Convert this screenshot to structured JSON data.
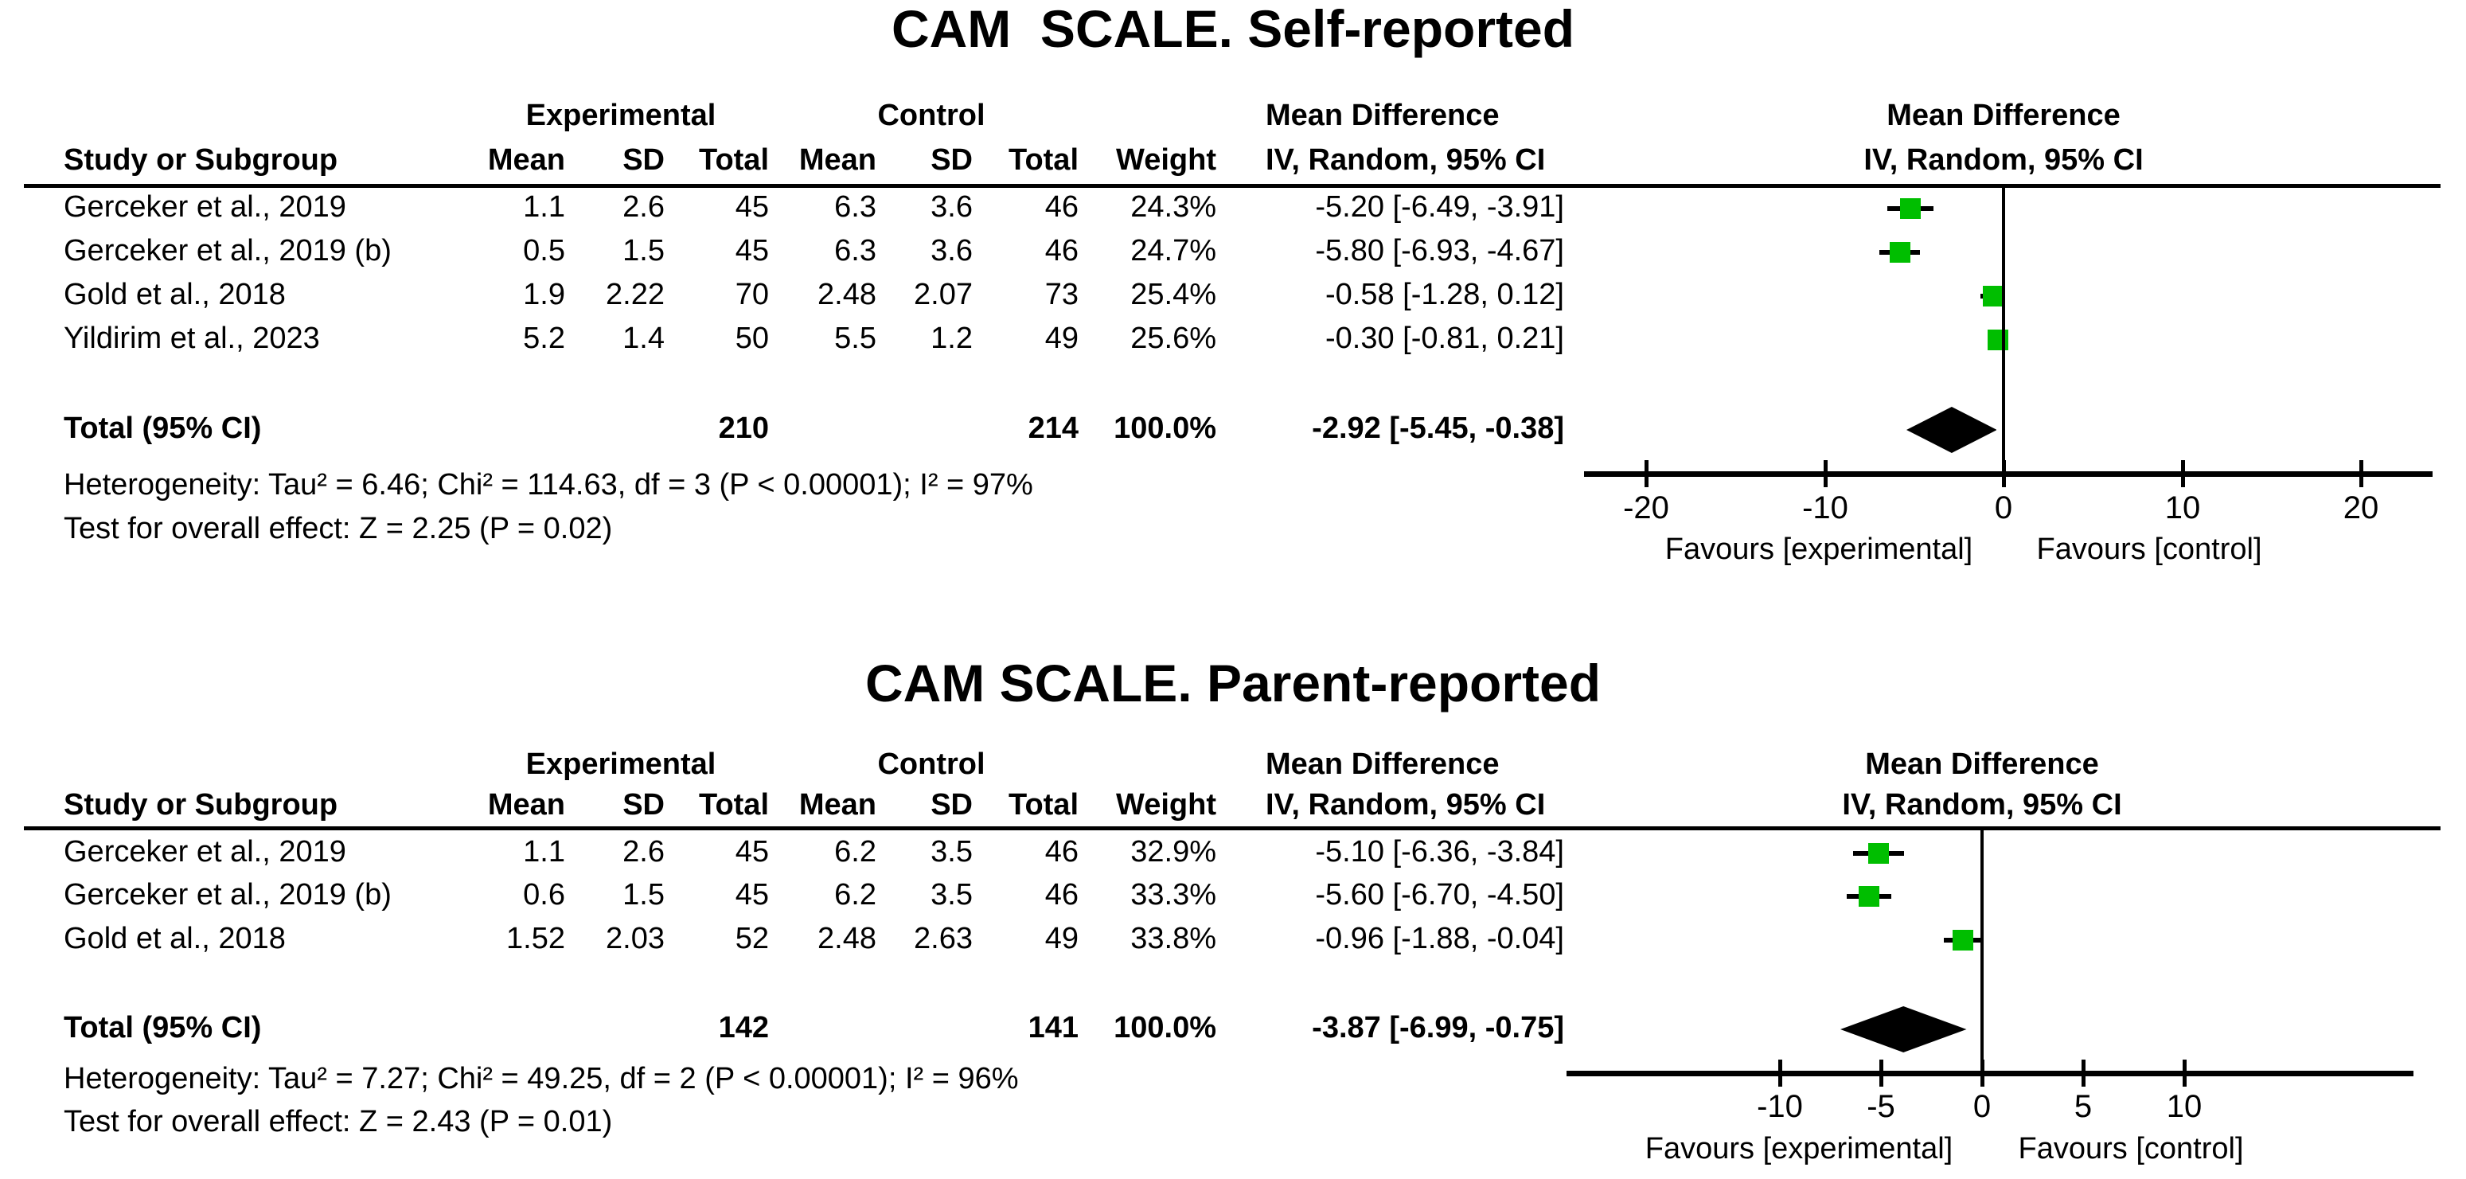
{
  "figure_type": "forest-plot-meta-analysis",
  "colors": {
    "marker_green": "#00BE00",
    "diamond_black": "#000000",
    "text": "#000000",
    "background": "#ffffff"
  },
  "chart_data": [
    {
      "type": "scatter",
      "subtype": "forest-plot",
      "title": "CAM  SCALE. Self-reported",
      "group_headers": {
        "experimental": "Experimental",
        "control": "Control",
        "effect": "Mean Difference"
      },
      "column_headers": {
        "study": "Study or Subgroup",
        "mean": "Mean",
        "sd": "SD",
        "total": "Total",
        "weight": "Weight",
        "method": "IV, Random, 95% CI"
      },
      "studies": [
        {
          "name": "Gerceker et al., 2019",
          "exp_mean": "1.1",
          "exp_sd": "2.6",
          "exp_total": "45",
          "ctl_mean": "6.3",
          "ctl_sd": "3.6",
          "ctl_total": "46",
          "weight": "24.3%",
          "ci_label": "-5.20 [-6.49, -3.91]",
          "md": -5.2,
          "ci_low": -6.49,
          "ci_high": -3.91
        },
        {
          "name": "Gerceker et al., 2019 (b)",
          "exp_mean": "0.5",
          "exp_sd": "1.5",
          "exp_total": "45",
          "ctl_mean": "6.3",
          "ctl_sd": "3.6",
          "ctl_total": "46",
          "weight": "24.7%",
          "ci_label": "-5.80 [-6.93, -4.67]",
          "md": -5.8,
          "ci_low": -6.93,
          "ci_high": -4.67
        },
        {
          "name": "Gold et al., 2018",
          "exp_mean": "1.9",
          "exp_sd": "2.22",
          "exp_total": "70",
          "ctl_mean": "2.48",
          "ctl_sd": "2.07",
          "ctl_total": "73",
          "weight": "25.4%",
          "ci_label": "-0.58 [-1.28, 0.12]",
          "md": -0.58,
          "ci_low": -1.28,
          "ci_high": 0.12
        },
        {
          "name": "Yildirim et al., 2023",
          "exp_mean": "5.2",
          "exp_sd": "1.4",
          "exp_total": "50",
          "ctl_mean": "5.5",
          "ctl_sd": "1.2",
          "ctl_total": "49",
          "weight": "25.6%",
          "ci_label": "-0.30 [-0.81, 0.21]",
          "md": -0.3,
          "ci_low": -0.81,
          "ci_high": 0.21
        }
      ],
      "total": {
        "label": "Total (95% CI)",
        "exp_total": "210",
        "ctl_total": "214",
        "weight": "100.0%",
        "ci_label": "-2.92 [-5.45, -0.38]",
        "md": -2.92,
        "ci_low": -5.45,
        "ci_high": -0.38
      },
      "heterogeneity": "Heterogeneity: Tau² = 6.46; Chi² = 114.63, df = 3 (P < 0.00001); I² = 97%",
      "overall_effect": "Test for overall effect: Z = 2.25 (P = 0.02)",
      "axis": {
        "ticks": [
          -20,
          -10,
          0,
          10,
          20
        ],
        "min": -23.5,
        "max": 24
      },
      "favours_left": "Favours [experimental]",
      "favours_right": "Favours [control]"
    },
    {
      "type": "scatter",
      "subtype": "forest-plot",
      "title": "CAM SCALE. Parent-reported",
      "group_headers": {
        "experimental": "Experimental",
        "control": "Control",
        "effect": "Mean Difference"
      },
      "column_headers": {
        "study": "Study or Subgroup",
        "mean": "Mean",
        "sd": "SD",
        "total": "Total",
        "weight": "Weight",
        "method": "IV, Random, 95% CI"
      },
      "studies": [
        {
          "name": "Gerceker et al., 2019",
          "exp_mean": "1.1",
          "exp_sd": "2.6",
          "exp_total": "45",
          "ctl_mean": "6.2",
          "ctl_sd": "3.5",
          "ctl_total": "46",
          "weight": "32.9%",
          "ci_label": "-5.10 [-6.36, -3.84]",
          "md": -5.1,
          "ci_low": -6.36,
          "ci_high": -3.84
        },
        {
          "name": "Gerceker et al., 2019 (b)",
          "exp_mean": "0.6",
          "exp_sd": "1.5",
          "exp_total": "45",
          "ctl_mean": "6.2",
          "ctl_sd": "3.5",
          "ctl_total": "46",
          "weight": "33.3%",
          "ci_label": "-5.60 [-6.70, -4.50]",
          "md": -5.6,
          "ci_low": -6.7,
          "ci_high": -4.5
        },
        {
          "name": "Gold et al., 2018",
          "exp_mean": "1.52",
          "exp_sd": "2.03",
          "exp_total": "52",
          "ctl_mean": "2.48",
          "ctl_sd": "2.63",
          "ctl_total": "49",
          "weight": "33.8%",
          "ci_label": "-0.96 [-1.88, -0.04]",
          "md": -0.96,
          "ci_low": -1.88,
          "ci_high": -0.04
        }
      ],
      "total": {
        "label": "Total (95% CI)",
        "exp_total": "142",
        "ctl_total": "141",
        "weight": "100.0%",
        "ci_label": "-3.87 [-6.99, -0.75]",
        "md": -3.87,
        "ci_low": -6.99,
        "ci_high": -0.75
      },
      "heterogeneity": "Heterogeneity: Tau² = 7.27; Chi² = 49.25, df = 2 (P < 0.00001); I² = 96%",
      "overall_effect": "Test for overall effect: Z = 2.43 (P = 0.01)",
      "axis": {
        "ticks": [
          -10,
          -5,
          0,
          5,
          10
        ],
        "min": -20.5,
        "max": 21
      },
      "favours_left": "Favours [experimental]",
      "favours_right": "Favours [control]"
    }
  ]
}
